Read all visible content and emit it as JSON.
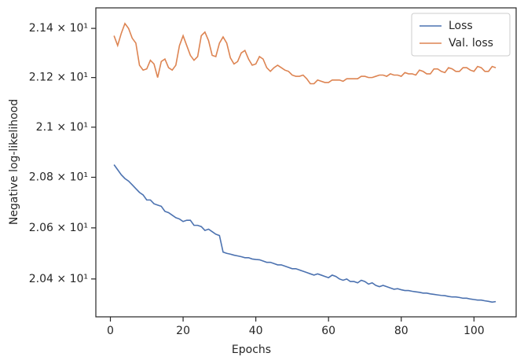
{
  "chart_data": {
    "type": "line",
    "xlabel": "Epochs",
    "ylabel": "Negative log-likelihood",
    "x": [
      1,
      2,
      3,
      4,
      5,
      6,
      7,
      8,
      9,
      10,
      11,
      12,
      13,
      14,
      15,
      16,
      17,
      18,
      19,
      20,
      21,
      22,
      23,
      24,
      25,
      26,
      27,
      28,
      29,
      30,
      31,
      32,
      33,
      34,
      35,
      36,
      37,
      38,
      39,
      40,
      41,
      42,
      43,
      44,
      45,
      46,
      47,
      48,
      49,
      50,
      51,
      52,
      53,
      54,
      55,
      56,
      57,
      58,
      59,
      60,
      61,
      62,
      63,
      64,
      65,
      66,
      67,
      68,
      69,
      70,
      71,
      72,
      73,
      74,
      75,
      76,
      77,
      78,
      79,
      80,
      81,
      82,
      83,
      84,
      85,
      86,
      87,
      88,
      89,
      90,
      91,
      92,
      93,
      94,
      95,
      96,
      97,
      98,
      99,
      100,
      101,
      102,
      103,
      104,
      105,
      106
    ],
    "series": [
      {
        "name": "Loss",
        "color": "#4c72b0",
        "values": [
          20.85,
          20.83,
          20.81,
          20.795,
          20.785,
          20.77,
          20.755,
          20.74,
          20.73,
          20.71,
          20.71,
          20.695,
          20.69,
          20.685,
          20.665,
          20.66,
          20.65,
          20.64,
          20.635,
          20.625,
          20.63,
          20.63,
          20.61,
          20.61,
          20.605,
          20.59,
          20.595,
          20.585,
          20.575,
          20.57,
          20.505,
          20.5,
          20.497,
          20.493,
          20.49,
          20.487,
          20.483,
          20.483,
          20.478,
          20.476,
          20.475,
          20.47,
          20.465,
          20.465,
          20.46,
          20.455,
          20.455,
          20.45,
          20.445,
          20.44,
          20.44,
          20.435,
          20.43,
          20.425,
          20.42,
          20.415,
          20.42,
          20.415,
          20.41,
          20.405,
          20.415,
          20.41,
          20.4,
          20.395,
          20.4,
          20.39,
          20.39,
          20.385,
          20.395,
          20.39,
          20.38,
          20.385,
          20.375,
          20.37,
          20.375,
          20.37,
          20.365,
          20.36,
          20.362,
          20.358,
          20.355,
          20.355,
          20.352,
          20.35,
          20.348,
          20.345,
          20.345,
          20.342,
          20.34,
          20.338,
          20.336,
          20.335,
          20.332,
          20.33,
          20.33,
          20.328,
          20.325,
          20.325,
          20.322,
          20.32,
          20.318,
          20.318,
          20.315,
          20.313,
          20.31,
          20.312
        ]
      },
      {
        "name": "Val. loss",
        "color": "#dd8452",
        "values": [
          21.37,
          21.33,
          21.38,
          21.42,
          21.4,
          21.36,
          21.34,
          21.25,
          21.23,
          21.235,
          21.27,
          21.255,
          21.2,
          21.265,
          21.275,
          21.24,
          21.23,
          21.25,
          21.33,
          21.37,
          21.33,
          21.29,
          21.27,
          21.285,
          21.37,
          21.385,
          21.35,
          21.29,
          21.285,
          21.34,
          21.365,
          21.34,
          21.28,
          21.255,
          21.265,
          21.3,
          21.31,
          21.275,
          21.25,
          21.255,
          21.285,
          21.275,
          21.24,
          21.225,
          21.24,
          21.25,
          21.24,
          21.23,
          21.225,
          21.21,
          21.205,
          21.205,
          21.21,
          21.195,
          21.175,
          21.175,
          21.19,
          21.185,
          21.18,
          21.18,
          21.19,
          21.19,
          21.19,
          21.185,
          21.195,
          21.195,
          21.195,
          21.195,
          21.205,
          21.205,
          21.2,
          21.2,
          21.205,
          21.21,
          21.21,
          21.205,
          21.215,
          21.21,
          21.21,
          21.205,
          21.22,
          21.215,
          21.215,
          21.21,
          21.23,
          21.225,
          21.215,
          21.215,
          21.235,
          21.235,
          21.225,
          21.22,
          21.24,
          21.235,
          21.225,
          21.225,
          21.24,
          21.24,
          21.23,
          21.225,
          21.245,
          21.24,
          21.225,
          21.225,
          21.245,
          21.24
        ]
      }
    ],
    "xlim": [
      -4,
      111.6
    ],
    "xticks": [
      0,
      20,
      40,
      60,
      80,
      100
    ],
    "ylim": [
      20.253,
      21.484
    ],
    "yscale": "log",
    "yticks": [
      {
        "value": 20.4,
        "label": "2.04 × 10¹"
      },
      {
        "value": 20.6,
        "label": "2.06 × 10¹"
      },
      {
        "value": 20.8,
        "label": "2.08 × 10¹"
      },
      {
        "value": 21.0,
        "label": "2.1 × 10¹"
      },
      {
        "value": 21.2,
        "label": "2.12 × 10¹"
      },
      {
        "value": 21.4,
        "label": "2.14 × 10¹"
      }
    ],
    "grid": false,
    "legend": "upper right"
  }
}
